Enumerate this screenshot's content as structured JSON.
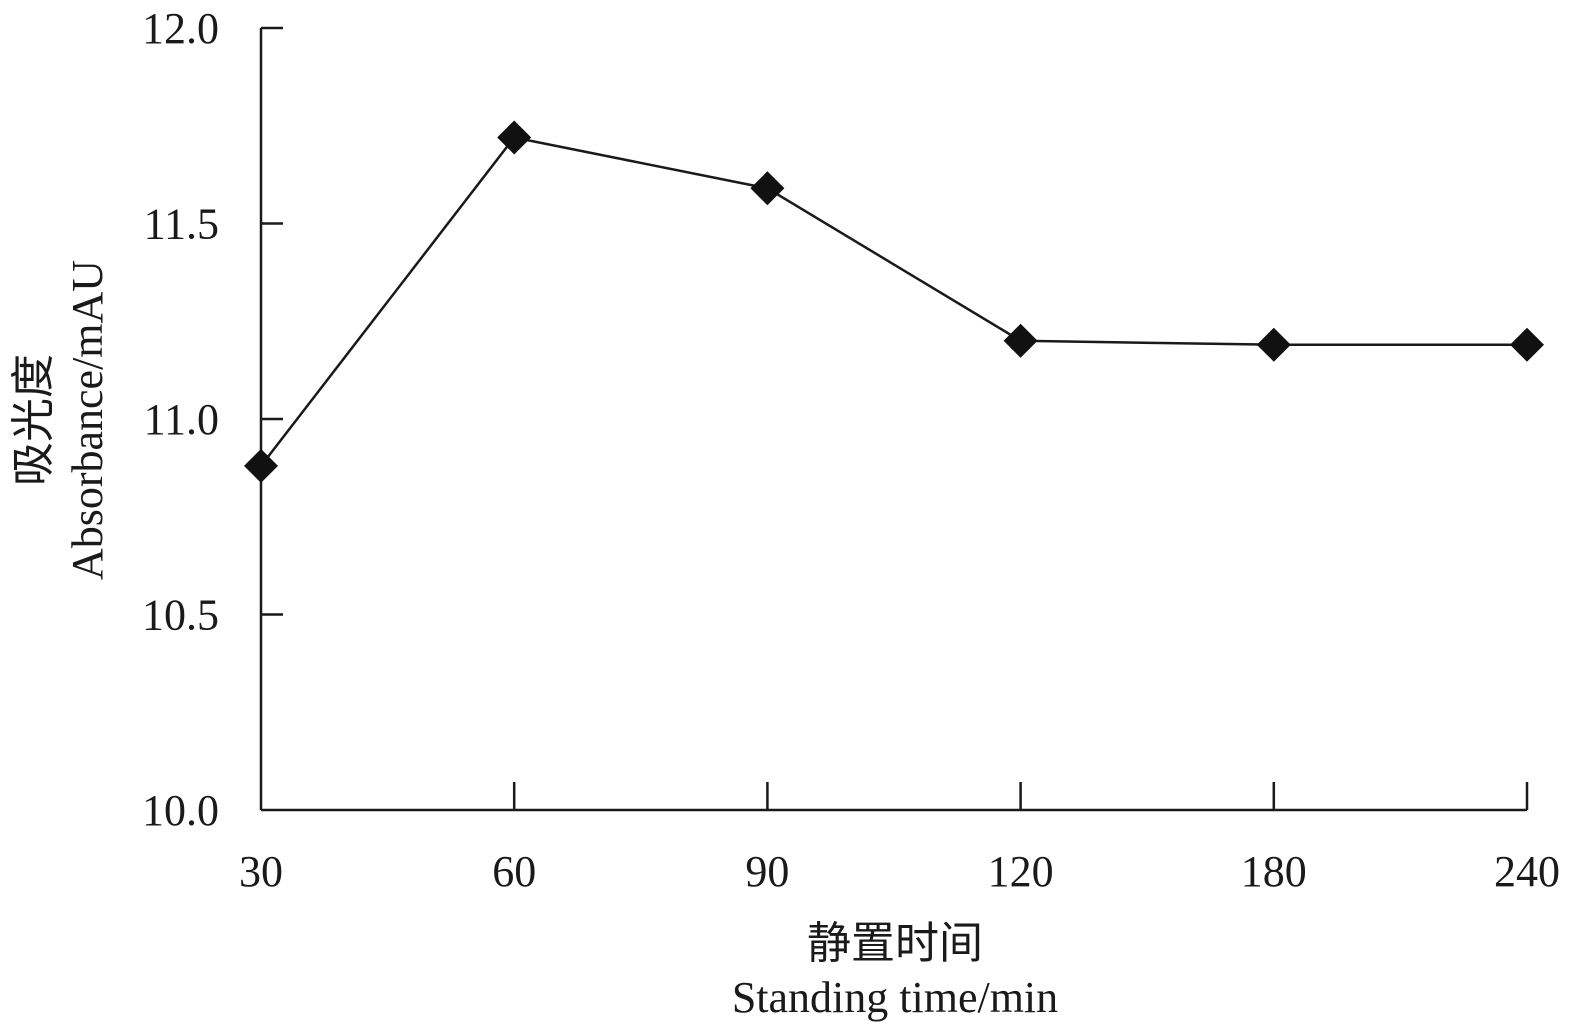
{
  "chart_data": {
    "type": "line",
    "x_categories": [
      "30",
      "60",
      "90",
      "120",
      "180",
      "240"
    ],
    "series": [
      {
        "values": [
          10.88,
          11.72,
          11.59,
          11.2,
          11.19,
          11.19
        ]
      }
    ],
    "yticks": [
      "10.0",
      "10.5",
      "11.0",
      "11.5",
      "12.0"
    ],
    "ylim": [
      10.0,
      12.0
    ],
    "xlabel_cn": "静置时间",
    "xlabel_en": "Standing time/min",
    "ylabel_cn": "吸光度",
    "ylabel_en": "Absorbance/mAU",
    "grid": false,
    "marker": "diamond",
    "colors": {
      "line": "#1a1a1a",
      "marker": "#111111"
    }
  }
}
